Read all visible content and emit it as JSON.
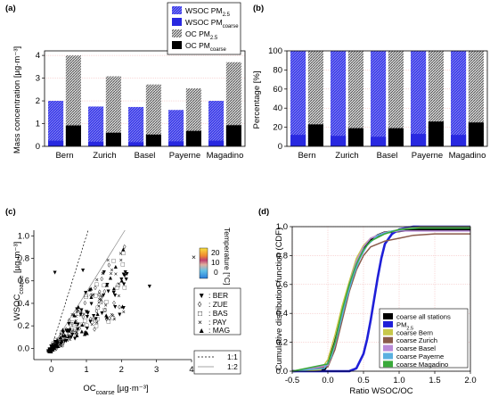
{
  "panel_labels": [
    "(a)",
    "(b)",
    "(c)",
    "(d)"
  ],
  "chart_data": [
    {
      "panel": "(a)",
      "type": "bar",
      "categories": [
        "Bern",
        "Zurich",
        "Basel",
        "Payerne",
        "Magadino"
      ],
      "ylabel": "Mass concentration [µg·m⁻³]",
      "ylim": [
        0,
        4.2
      ],
      "yticks": [
        "0",
        "1",
        "2",
        "3",
        "4"
      ],
      "grid": true,
      "legend": {
        "position": "top-right",
        "entries": [
          {
            "base": "WSOC PM",
            "sub": "2.5",
            "style": "blue-hatched"
          },
          {
            "base": "WSOC PM",
            "sub": "coarse",
            "style": "blue-solid"
          },
          {
            "base": "OC PM",
            "sub": "2.5",
            "style": "gray-hatched"
          },
          {
            "base": "OC PM",
            "sub": "coarse",
            "style": "black"
          }
        ]
      },
      "series": [
        {
          "name": "WSOC PM2.5",
          "values": [
            2.0,
            1.75,
            1.73,
            1.6,
            2.0
          ]
        },
        {
          "name": "WSOC PMcoarse",
          "values": [
            0.25,
            0.2,
            0.18,
            0.22,
            0.25
          ]
        },
        {
          "name": "OC PM2.5",
          "values": [
            4.0,
            3.08,
            2.72,
            2.55,
            3.7
          ]
        },
        {
          "name": "OC PMcoarse",
          "values": [
            0.92,
            0.6,
            0.52,
            0.68,
            0.93
          ]
        }
      ]
    },
    {
      "panel": "(b)",
      "type": "bar",
      "categories": [
        "Bern",
        "Zurich",
        "Basel",
        "Payerne",
        "Magadino"
      ],
      "ylabel": "Percentage [%]",
      "ylim": [
        0,
        100
      ],
      "yticks": [
        "0",
        "20",
        "40",
        "60",
        "80",
        "100"
      ],
      "grid": true,
      "series": [
        {
          "name": "WSOC PM2.5",
          "values": [
            100,
            100,
            100,
            100,
            100
          ]
        },
        {
          "name": "WSOC PMcoarse",
          "values": [
            12,
            11,
            10,
            13,
            12
          ]
        },
        {
          "name": "OC PM2.5",
          "values": [
            100,
            100,
            100,
            100,
            100
          ]
        },
        {
          "name": "OC PMcoarse",
          "values": [
            23,
            19,
            19,
            26,
            25
          ]
        }
      ]
    },
    {
      "panel": "(c)",
      "type": "scatter",
      "xlabel_base": "OC",
      "xlabel_sub": "coarse",
      "xlabel_unit": " [µg·m⁻³]",
      "ylabel_base": "WSOC",
      "ylabel_sub": "coarse",
      "ylabel_unit": " [µg·m⁻³]",
      "xlim": [
        -0.5,
        4
      ],
      "ylim": [
        -0.1,
        1.05
      ],
      "xticks": [
        "0",
        "1",
        "2",
        "3",
        "4"
      ],
      "yticks": [
        "0.0",
        "0.2",
        "0.4",
        "0.6",
        "0.8",
        "1.0"
      ],
      "colorbar": {
        "label": "Temperature [°C]",
        "ticks": [
          "20",
          "10",
          "0"
        ],
        "over_marker": "×"
      },
      "marker_legend": [
        {
          "symbol": "▼",
          "label": ": BER"
        },
        {
          "symbol": "◊",
          "label": ": ZUE"
        },
        {
          "symbol": "□",
          "label": ": BAS"
        },
        {
          "symbol": "×",
          "label": ": PAY"
        },
        {
          "symbol": "▲",
          "label": ": MAG"
        }
      ],
      "line_legend": [
        {
          "style": "dashed",
          "label": "1:1"
        },
        {
          "style": "solid",
          "label": "1:2"
        }
      ],
      "reference_lines": [
        {
          "label": "1:1",
          "slope": 1
        },
        {
          "label": "1:2",
          "slope": 0.5
        }
      ]
    },
    {
      "panel": "(d)",
      "type": "line",
      "xlabel": "Ratio WSOC/OC",
      "ylabel": "Cumulative distribution function (CDF)",
      "xlim": [
        -0.5,
        2.0
      ],
      "ylim": [
        0,
        1.0
      ],
      "xticks": [
        "-0.5",
        "0.0",
        "0.5",
        "1.0",
        "1.5",
        "2.0"
      ],
      "yticks": [
        "0.0",
        "0.2",
        "0.4",
        "0.6",
        "0.8",
        "1.0"
      ],
      "grid": true,
      "legend": {
        "position": "bottom-right",
        "entries": [
          {
            "label": "coarse all stations",
            "color": "#000000"
          },
          {
            "label": "PM",
            "sub": "2.5",
            "color": "#1f1fd8"
          },
          {
            "label": "coarse Bern",
            "color": "#c8c84a"
          },
          {
            "label": "coarse Zurich",
            "color": "#8a5a4a"
          },
          {
            "label": "coarse Basel",
            "color": "#b98ad8"
          },
          {
            "label": "coarse Payerne",
            "color": "#5ab0e0"
          },
          {
            "label": "coarse Magadino",
            "color": "#3aaa3a"
          }
        ]
      },
      "series": [
        {
          "name": "coarse all stations",
          "color": "#000000",
          "x": [
            -0.5,
            -0.05,
            0.0,
            0.1,
            0.2,
            0.3,
            0.4,
            0.5,
            0.6,
            0.7,
            0.8,
            1.0,
            1.2,
            2.0
          ],
          "y": [
            0.0,
            0.01,
            0.05,
            0.2,
            0.4,
            0.6,
            0.75,
            0.85,
            0.91,
            0.94,
            0.96,
            0.97,
            0.98,
            0.98
          ]
        },
        {
          "name": "PM2.5",
          "color": "#1f1fd8",
          "x": [
            -0.5,
            0.3,
            0.4,
            0.5,
            0.55,
            0.6,
            0.65,
            0.7,
            0.75,
            0.8,
            0.9,
            1.0,
            1.2,
            2.0
          ],
          "y": [
            0.0,
            0.0,
            0.02,
            0.12,
            0.22,
            0.35,
            0.5,
            0.65,
            0.78,
            0.88,
            0.95,
            0.98,
            1.0,
            1.0
          ]
        },
        {
          "name": "coarse Bern",
          "color": "#c8c84a",
          "x": [
            -0.5,
            -0.1,
            0.0,
            0.1,
            0.2,
            0.3,
            0.4,
            0.5,
            0.6,
            0.8,
            1.0,
            1.3,
            2.0
          ],
          "y": [
            0.0,
            0.01,
            0.08,
            0.25,
            0.45,
            0.62,
            0.78,
            0.87,
            0.92,
            0.96,
            0.98,
            1.0,
            1.0
          ]
        },
        {
          "name": "coarse Zurich",
          "color": "#8a5a4a",
          "x": [
            -0.5,
            0.0,
            0.1,
            0.2,
            0.3,
            0.4,
            0.5,
            0.6,
            0.8,
            1.0,
            1.2,
            1.5,
            2.0
          ],
          "y": [
            0.0,
            0.03,
            0.15,
            0.35,
            0.55,
            0.7,
            0.8,
            0.86,
            0.9,
            0.92,
            0.94,
            0.95,
            0.95
          ]
        },
        {
          "name": "coarse Basel",
          "color": "#b98ad8",
          "x": [
            -0.5,
            0.0,
            0.1,
            0.2,
            0.3,
            0.4,
            0.5,
            0.6,
            0.8,
            1.0,
            1.2,
            2.0
          ],
          "y": [
            0.0,
            0.04,
            0.18,
            0.4,
            0.6,
            0.76,
            0.86,
            0.92,
            0.96,
            0.97,
            0.97,
            0.97
          ]
        },
        {
          "name": "coarse Payerne",
          "color": "#5ab0e0",
          "x": [
            -0.5,
            -0.05,
            0.05,
            0.15,
            0.25,
            0.35,
            0.45,
            0.55,
            0.7,
            0.9,
            1.2,
            2.0
          ],
          "y": [
            0.0,
            0.02,
            0.1,
            0.28,
            0.48,
            0.65,
            0.78,
            0.87,
            0.94,
            0.97,
            0.99,
            0.99
          ]
        },
        {
          "name": "coarse Magadino",
          "color": "#3aaa3a",
          "x": [
            -0.5,
            0.0,
            0.1,
            0.2,
            0.3,
            0.4,
            0.5,
            0.6,
            0.8,
            1.0,
            1.3,
            2.0
          ],
          "y": [
            0.0,
            0.05,
            0.2,
            0.42,
            0.6,
            0.74,
            0.84,
            0.9,
            0.95,
            0.98,
            0.99,
            0.99
          ]
        }
      ]
    }
  ]
}
